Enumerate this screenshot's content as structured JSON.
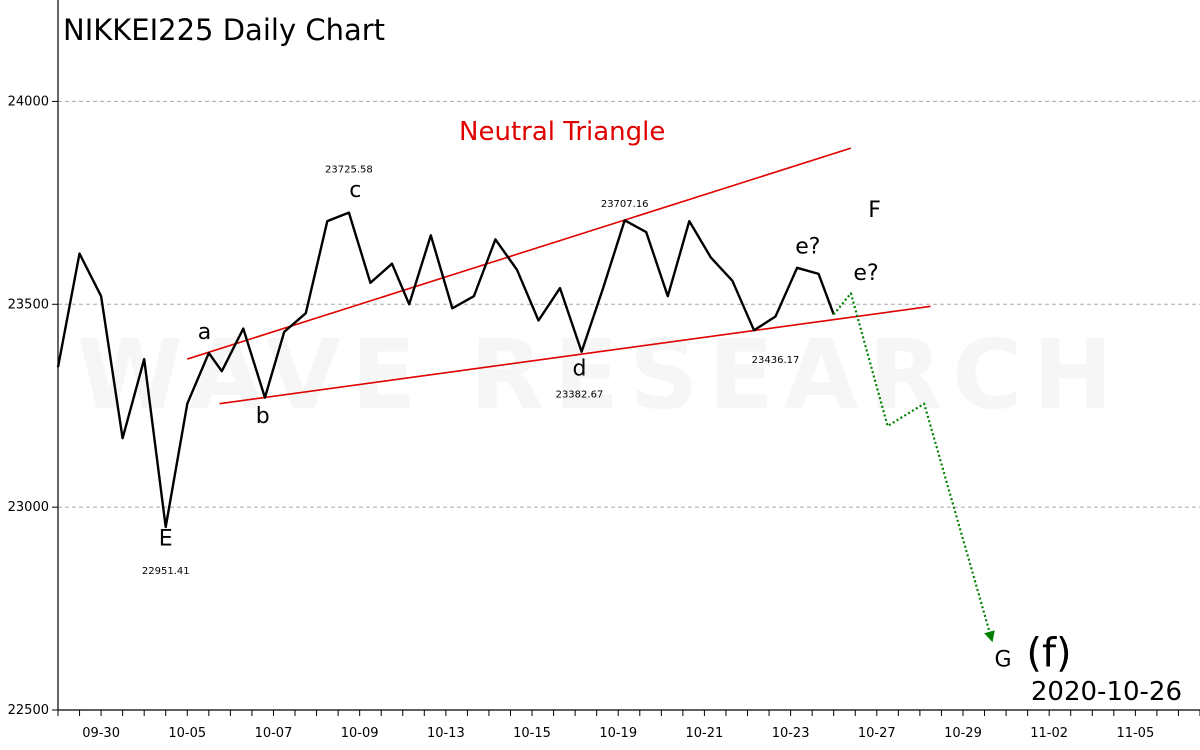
{
  "chart_data": {
    "type": "line",
    "title": "NIKKEI225 Daily Chart",
    "watermark": "WAVE RESEARCH",
    "date_stamp": "2020-10-26",
    "ylim": [
      22500,
      24250
    ],
    "y_gridlines": [
      23000,
      23500,
      24000
    ],
    "y_ticks": [
      {
        "value": 22500,
        "label": "22500"
      },
      {
        "value": 23000,
        "label": "23000"
      },
      {
        "value": 23500,
        "label": "23500"
      },
      {
        "value": 24000,
        "label": "24000"
      }
    ],
    "x_domain": [
      0,
      26.5
    ],
    "x_ticks": [
      {
        "index": 1,
        "label": "09-30"
      },
      {
        "index": 3,
        "label": "10-05"
      },
      {
        "index": 5,
        "label": "10-07"
      },
      {
        "index": 7,
        "label": "10-09"
      },
      {
        "index": 9,
        "label": "10-13"
      },
      {
        "index": 11,
        "label": "10-15"
      },
      {
        "index": 13,
        "label": "10-19"
      },
      {
        "index": 15,
        "label": "10-21"
      },
      {
        "index": 17,
        "label": "10-23"
      },
      {
        "index": 19,
        "label": "10-27"
      },
      {
        "index": 21,
        "label": "10-29"
      },
      {
        "index": 23,
        "label": "11-02"
      },
      {
        "index": 25,
        "label": "11-05"
      }
    ],
    "minor_tick_step": 0.5,
    "series": [
      {
        "color": "#000000",
        "style": "solid",
        "points": [
          [
            0.0,
            23345
          ],
          [
            0.5,
            23625
          ],
          [
            1.0,
            23520
          ],
          [
            1.5,
            23170
          ],
          [
            2.0,
            23365
          ],
          [
            2.5,
            22951
          ],
          [
            3.0,
            23255
          ],
          [
            3.5,
            23380
          ],
          [
            3.8,
            23335
          ],
          [
            4.3,
            23440
          ],
          [
            4.8,
            23270
          ],
          [
            5.25,
            23432
          ],
          [
            5.75,
            23478
          ],
          [
            6.25,
            23705
          ],
          [
            6.75,
            23726
          ],
          [
            7.25,
            23553
          ],
          [
            7.75,
            23600
          ],
          [
            8.15,
            23500
          ],
          [
            8.65,
            23670
          ],
          [
            9.15,
            23490
          ],
          [
            9.65,
            23520
          ],
          [
            10.15,
            23660
          ],
          [
            10.65,
            23585
          ],
          [
            11.15,
            23460
          ],
          [
            11.65,
            23540
          ],
          [
            12.15,
            23383
          ],
          [
            12.65,
            23540
          ],
          [
            13.15,
            23707
          ],
          [
            13.65,
            23678
          ],
          [
            14.15,
            23520
          ],
          [
            14.65,
            23705
          ],
          [
            15.15,
            23615
          ],
          [
            15.65,
            23558
          ],
          [
            16.15,
            23436
          ],
          [
            16.65,
            23470
          ],
          [
            17.15,
            23590
          ],
          [
            17.65,
            23575
          ],
          [
            18.0,
            23475
          ]
        ]
      },
      {
        "color": "#008000",
        "style": "dotted",
        "points": [
          [
            18.0,
            23475
          ],
          [
            18.4,
            23527
          ],
          [
            19.25,
            23200
          ],
          [
            20.1,
            23255
          ],
          [
            21.65,
            22680
          ]
        ]
      }
    ],
    "trendlines": [
      {
        "color": "#e00000",
        "from": [
          3.0,
          23365
        ],
        "to": [
          18.4,
          23885
        ]
      },
      {
        "color": "#e00000",
        "from": [
          3.75,
          23255
        ],
        "to": [
          20.25,
          23495
        ]
      }
    ],
    "annotations": [
      {
        "text": "E",
        "x": 2.5,
        "y": 22905,
        "kind": "wave"
      },
      {
        "text": "22951.41",
        "x": 2.5,
        "y": 22835,
        "kind": "price"
      },
      {
        "text": "a",
        "x": 3.4,
        "y": 23415,
        "kind": "wave"
      },
      {
        "text": "b",
        "x": 4.75,
        "y": 23208,
        "kind": "wave"
      },
      {
        "text": "c",
        "x": 6.9,
        "y": 23765,
        "kind": "wave"
      },
      {
        "text": "23725.58",
        "x": 6.75,
        "y": 23825,
        "kind": "price"
      },
      {
        "text": "d",
        "x": 12.1,
        "y": 23325,
        "kind": "wave"
      },
      {
        "text": "23382.67",
        "x": 12.1,
        "y": 23270,
        "kind": "price"
      },
      {
        "text": "23707.16",
        "x": 13.15,
        "y": 23740,
        "kind": "price"
      },
      {
        "text": "23436.17",
        "x": 16.65,
        "y": 23355,
        "kind": "price"
      },
      {
        "text": "e?",
        "x": 17.4,
        "y": 23625,
        "kind": "wave"
      },
      {
        "text": "e?",
        "x": 18.75,
        "y": 23560,
        "kind": "wave"
      },
      {
        "text": "F",
        "x": 18.95,
        "y": 23715,
        "kind": "wave"
      },
      {
        "text": "Neutral Triangle",
        "x": 11.7,
        "y": 23905,
        "kind": "pattern"
      }
    ],
    "end_label": {
      "letter": "G",
      "paren": "(f)",
      "x": 21.65,
      "y": 22585
    }
  }
}
